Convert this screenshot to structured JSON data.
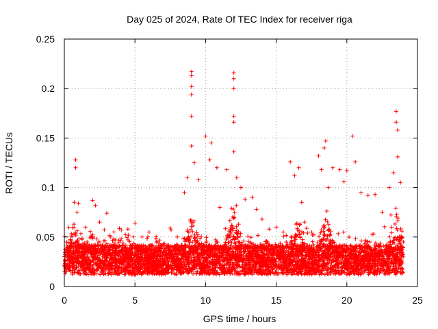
{
  "chart_data": {
    "type": "scatter",
    "title": "Day 025 of 2024, Rate Of TEC Index for receiver riga",
    "xlabel": "GPS time / hours",
    "ylabel": "ROTI / TECUs",
    "xlim": [
      0,
      25
    ],
    "ylim": [
      0,
      0.25
    ],
    "xticks": [
      0,
      5,
      10,
      15,
      20,
      25
    ],
    "yticks": [
      0,
      0.05,
      0.1,
      0.15,
      0.2,
      0.25
    ],
    "xtick_labels": [
      "0",
      "5",
      "10",
      "15",
      "20",
      "25"
    ],
    "ytick_labels": [
      "0",
      "0.05",
      "0.1",
      "0.15",
      "0.2",
      "0.25"
    ],
    "grid": true,
    "marker": "+",
    "color": "#ff0000",
    "series": [
      {
        "name": "ROTI",
        "note": "dense cloud of ~0.01-0.04 TECU background across 0-24 h, with elevated activity near 0.8, 9, 12, 16.5, 18.5 and 23.5 h",
        "points": [
          [
            0.8,
            0.128
          ],
          [
            0.8,
            0.12
          ],
          [
            0.7,
            0.085
          ],
          [
            0.9,
            0.075
          ],
          [
            1.0,
            0.084
          ],
          [
            2.0,
            0.087
          ],
          [
            2.2,
            0.082
          ],
          [
            2.5,
            0.065
          ],
          [
            3.0,
            0.074
          ],
          [
            1.5,
            0.06
          ],
          [
            3.5,
            0.048
          ],
          [
            4.5,
            0.058
          ],
          [
            5.0,
            0.064
          ],
          [
            5.5,
            0.05
          ],
          [
            6.0,
            0.055
          ],
          [
            7.0,
            0.043
          ],
          [
            8.0,
            0.05
          ],
          [
            8.5,
            0.095
          ],
          [
            8.7,
            0.11
          ],
          [
            9.0,
            0.217
          ],
          [
            9.0,
            0.213
          ],
          [
            9.0,
            0.202
          ],
          [
            9.0,
            0.194
          ],
          [
            9.0,
            0.172
          ],
          [
            9.0,
            0.142
          ],
          [
            9.2,
            0.125
          ],
          [
            9.5,
            0.108
          ],
          [
            10.0,
            0.152
          ],
          [
            10.4,
            0.145
          ],
          [
            10.3,
            0.128
          ],
          [
            10.8,
            0.12
          ],
          [
            11.0,
            0.08
          ],
          [
            11.5,
            0.118
          ],
          [
            12.0,
            0.216
          ],
          [
            12.0,
            0.21
          ],
          [
            12.0,
            0.2
          ],
          [
            12.0,
            0.172
          ],
          [
            12.0,
            0.166
          ],
          [
            12.0,
            0.136
          ],
          [
            12.2,
            0.11
          ],
          [
            12.5,
            0.1
          ],
          [
            12.8,
            0.088
          ],
          [
            13.3,
            0.09
          ],
          [
            13.6,
            0.078
          ],
          [
            14.0,
            0.068
          ],
          [
            14.5,
            0.058
          ],
          [
            15.0,
            0.06
          ],
          [
            15.5,
            0.055
          ],
          [
            16.0,
            0.126
          ],
          [
            16.3,
            0.112
          ],
          [
            16.6,
            0.12
          ],
          [
            16.8,
            0.085
          ],
          [
            17.0,
            0.065
          ],
          [
            17.5,
            0.055
          ],
          [
            18.0,
            0.132
          ],
          [
            18.2,
            0.118
          ],
          [
            18.4,
            0.14
          ],
          [
            18.5,
            0.147
          ],
          [
            18.7,
            0.1
          ],
          [
            19.0,
            0.12
          ],
          [
            19.5,
            0.118
          ],
          [
            19.8,
            0.106
          ],
          [
            20.0,
            0.117
          ],
          [
            20.4,
            0.152
          ],
          [
            20.6,
            0.126
          ],
          [
            21.0,
            0.095
          ],
          [
            21.5,
            0.092
          ],
          [
            22.0,
            0.093
          ],
          [
            22.5,
            0.075
          ],
          [
            23.0,
            0.1
          ],
          [
            23.3,
            0.115
          ],
          [
            23.5,
            0.177
          ],
          [
            23.5,
            0.166
          ],
          [
            23.6,
            0.158
          ],
          [
            23.6,
            0.131
          ],
          [
            23.8,
            0.105
          ],
          [
            24.0,
            0.045
          ]
        ]
      }
    ]
  },
  "colors": {
    "marker": "#ff0000",
    "grid": "#a0a0a0",
    "axis": "#000000"
  }
}
